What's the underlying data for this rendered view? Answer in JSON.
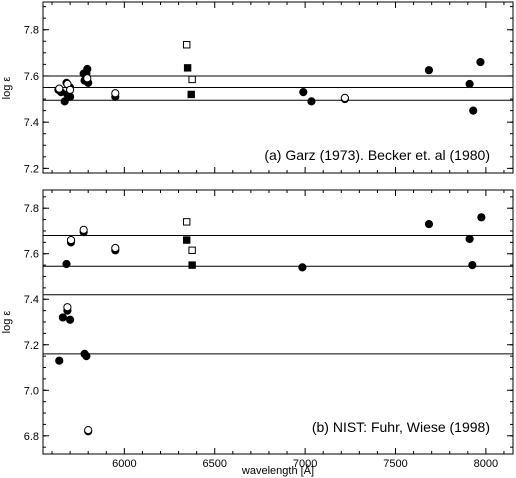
{
  "chart_data": [
    {
      "type": "scatter",
      "panel": "a",
      "annotation": "(a) Garz (1973). Becker et. al (1980)",
      "xlabel": "",
      "ylabel": "log ε",
      "xlim": [
        5550,
        8150
      ],
      "ylim": [
        7.18,
        7.92
      ],
      "yticks": [
        7.2,
        7.4,
        7.6,
        7.8
      ],
      "ytick_labels": [
        "7.2",
        "7.4",
        "7.6",
        "7.8"
      ],
      "xticks": [
        6000,
        6500,
        7000,
        7500,
        8000
      ],
      "xtick_labels": [],
      "hlines": [
        7.6,
        7.55,
        7.495
      ],
      "series": [
        {
          "marker": "filled-circle",
          "points": [
            [
              5635,
              7.54
            ],
            [
              5650,
              7.53
            ],
            [
              5670,
              7.49
            ],
            [
              5685,
              7.52
            ],
            [
              5680,
              7.57
            ],
            [
              5700,
              7.55
            ],
            [
              5700,
              7.51
            ],
            [
              5775,
              7.61
            ],
            [
              5790,
              7.61
            ],
            [
              5795,
              7.63
            ],
            [
              5780,
              7.58
            ],
            [
              5800,
              7.57
            ],
            [
              5950,
              7.51
            ],
            [
              6990,
              7.53
            ],
            [
              7035,
              7.49
            ],
            [
              7220,
              7.5
            ],
            [
              7685,
              7.625
            ],
            [
              7910,
              7.565
            ],
            [
              7930,
              7.45
            ],
            [
              7970,
              7.66
            ]
          ]
        },
        {
          "marker": "open-circle",
          "points": [
            [
              5640,
              7.545
            ],
            [
              5685,
              7.565
            ],
            [
              5700,
              7.54
            ],
            [
              5795,
              7.59
            ],
            [
              5950,
              7.525
            ],
            [
              7220,
              7.505
            ]
          ]
        },
        {
          "marker": "filled-square",
          "points": [
            [
              6350,
              7.635
            ],
            [
              6370,
              7.52
            ]
          ]
        },
        {
          "marker": "open-square",
          "points": [
            [
              6345,
              7.735
            ],
            [
              6375,
              7.585
            ]
          ]
        }
      ]
    },
    {
      "type": "scatter",
      "panel": "b",
      "annotation": "(b) NIST: Fuhr, Wiese (1998)",
      "xlabel": "wavelength [Å]",
      "ylabel": "log ε",
      "xlim": [
        5550,
        8150
      ],
      "ylim": [
        6.72,
        7.88
      ],
      "yticks": [
        6.8,
        7.0,
        7.2,
        7.4,
        7.6,
        7.8
      ],
      "ytick_labels": [
        "6.8",
        "7.0",
        "7.2",
        "7.4",
        "7.6",
        "7.8"
      ],
      "xticks": [
        6000,
        6500,
        7000,
        7500,
        8000
      ],
      "xtick_labels": [
        "6000",
        "6500",
        "7000",
        "7500",
        "8000"
      ],
      "hlines": [
        7.68,
        7.545,
        7.42,
        7.16
      ],
      "series": [
        {
          "marker": "filled-circle",
          "points": [
            [
              5640,
              7.13
            ],
            [
              5660,
              7.32
            ],
            [
              5685,
              7.35
            ],
            [
              5680,
              7.555
            ],
            [
              5700,
              7.31
            ],
            [
              5705,
              7.65
            ],
            [
              5775,
              7.695
            ],
            [
              5780,
              7.16
            ],
            [
              5790,
              7.15
            ],
            [
              5800,
              6.82
            ],
            [
              5950,
              7.615
            ],
            [
              6985,
              7.54
            ],
            [
              7685,
              7.73
            ],
            [
              7910,
              7.665
            ],
            [
              7925,
              7.55
            ],
            [
              7975,
              7.76
            ]
          ]
        },
        {
          "marker": "open-circle",
          "points": [
            [
              5685,
              7.365
            ],
            [
              5705,
              7.66
            ],
            [
              5775,
              7.705
            ],
            [
              5950,
              7.625
            ],
            [
              5800,
              6.825
            ]
          ]
        },
        {
          "marker": "filled-square",
          "points": [
            [
              6345,
              7.66
            ],
            [
              6375,
              7.55
            ]
          ]
        },
        {
          "marker": "open-square",
          "points": [
            [
              6345,
              7.74
            ],
            [
              6375,
              7.615
            ]
          ]
        }
      ]
    }
  ]
}
